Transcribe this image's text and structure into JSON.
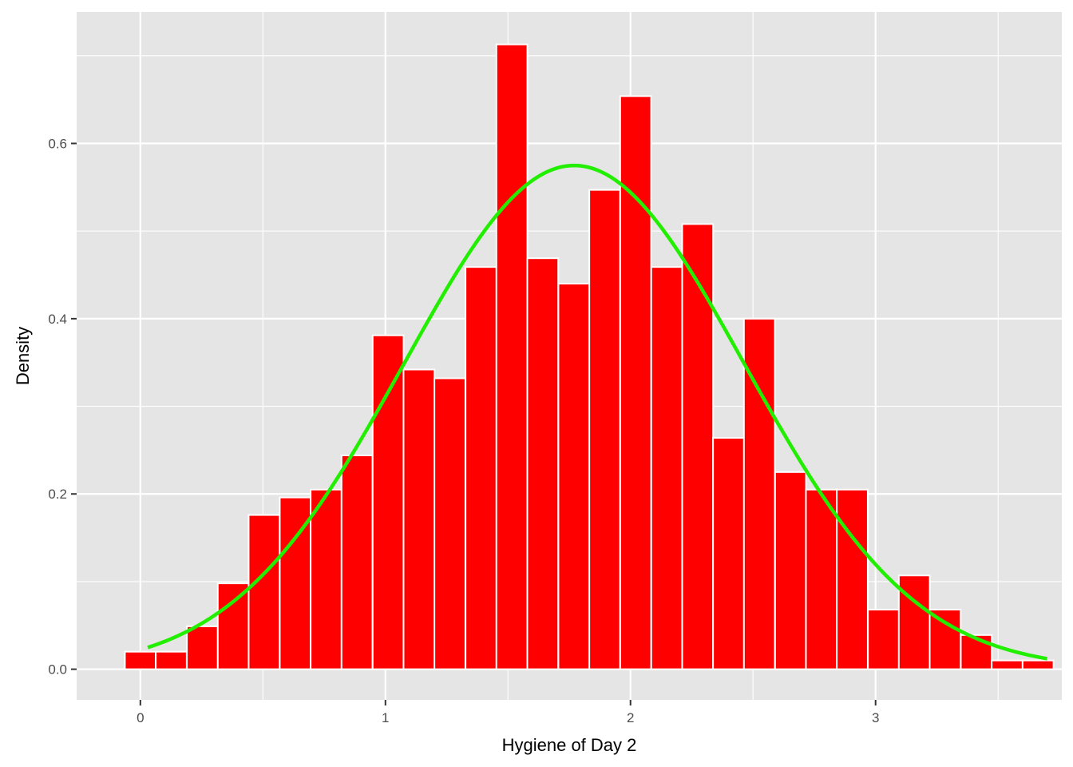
{
  "chart_data": {
    "type": "bar",
    "subtype": "histogram with fitted normal density curve",
    "title": "",
    "xlabel": "Hygiene of Day 2",
    "ylabel": "Density",
    "xlim": [
      -0.26,
      3.76
    ],
    "ylim": [
      -0.035,
      0.75
    ],
    "x_ticks": [
      0,
      1,
      2,
      3
    ],
    "x_tick_labels": [
      "0",
      "1",
      "2",
      "3"
    ],
    "y_ticks": [
      0.0,
      0.2,
      0.4,
      0.6
    ],
    "y_tick_labels": [
      "0.0",
      "0.2",
      "0.4",
      "0.6"
    ],
    "grid": true,
    "bin_width": 0.1263,
    "histogram": {
      "bin_centers": [
        0.0,
        0.126,
        0.253,
        0.379,
        0.505,
        0.632,
        0.758,
        0.884,
        1.011,
        1.137,
        1.263,
        1.39,
        1.516,
        1.642,
        1.769,
        1.895,
        2.021,
        2.148,
        2.274,
        2.4,
        2.526,
        2.653,
        2.779,
        2.905,
        3.032,
        3.158,
        3.284,
        3.411,
        3.537,
        3.663
      ],
      "density": [
        0.02,
        0.02,
        0.049,
        0.098,
        0.176,
        0.196,
        0.205,
        0.244,
        0.381,
        0.342,
        0.332,
        0.459,
        0.713,
        0.469,
        0.44,
        0.547,
        0.654,
        0.459,
        0.508,
        0.264,
        0.4,
        0.225,
        0.205,
        0.205,
        0.068,
        0.107,
        0.068,
        0.039,
        0.01,
        0.01
      ],
      "fill": "#FF0000",
      "outline": "#FFFFFF"
    },
    "curve": {
      "distribution": "normal",
      "mean": 1.77,
      "sd": 0.694,
      "x_range": [
        0.03,
        3.7
      ],
      "color": "#22EE00"
    },
    "panel_background": "#E5E5E5",
    "grid_color": "#FFFFFF"
  }
}
